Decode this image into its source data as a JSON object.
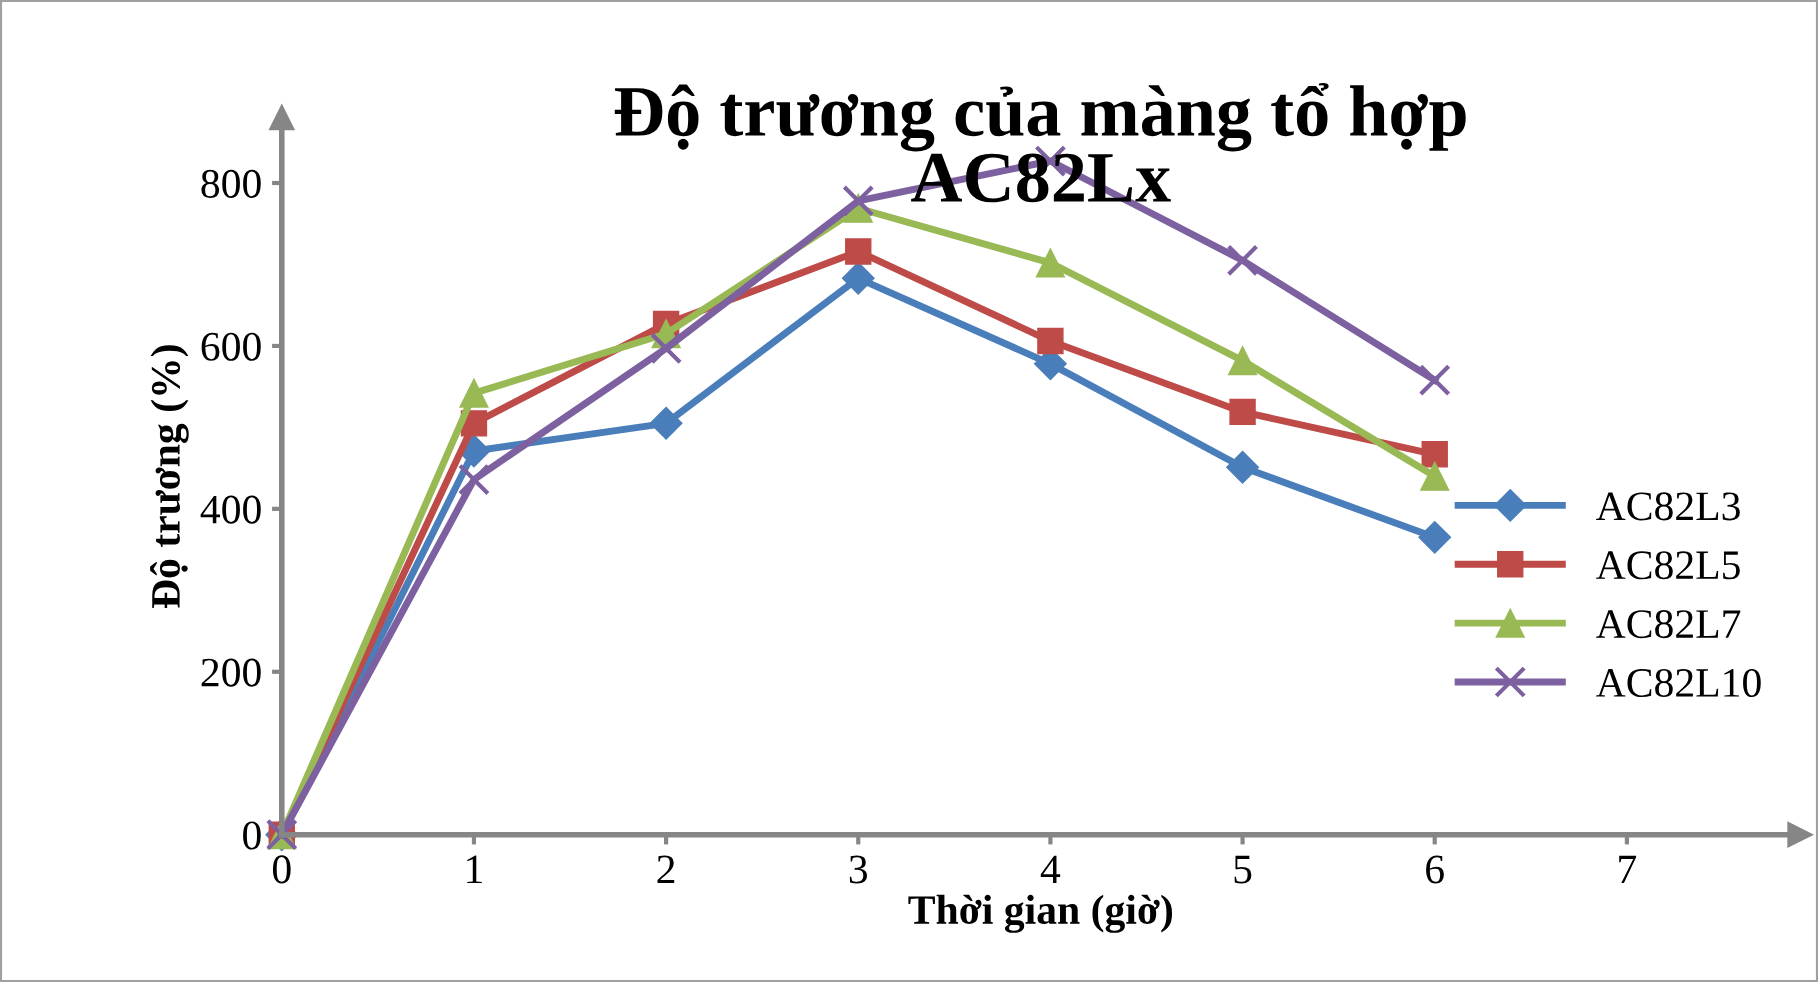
{
  "chart_data": {
    "type": "line",
    "title": "Độ trương của màng tổ hợp\nAC82Lx",
    "xlabel": "Thời gian (giờ)",
    "ylabel": "Độ trương (%)",
    "x": [
      0,
      1,
      2,
      3,
      4,
      5,
      6
    ],
    "xlim": [
      0,
      7.9
    ],
    "xticks": [
      0,
      1,
      2,
      3,
      4,
      5,
      6,
      7
    ],
    "ylim": [
      0,
      880
    ],
    "yticks": [
      0,
      200,
      400,
      600,
      800
    ],
    "grid": false,
    "legend": "right",
    "series": [
      {
        "name": "AC82L3",
        "color": "#4a7ebb",
        "marker": "diamond",
        "values": [
          0,
          471,
          505,
          683,
          578,
          451,
          365
        ]
      },
      {
        "name": "AC82L5",
        "color": "#be4b48",
        "marker": "square",
        "values": [
          0,
          505,
          627,
          716,
          606,
          519,
          467
        ]
      },
      {
        "name": "AC82L7",
        "color": "#98b954",
        "marker": "triangle",
        "values": [
          0,
          542,
          615,
          769,
          702,
          582,
          440
        ]
      },
      {
        "name": "AC82L10",
        "color": "#7d60a0",
        "marker": "cross",
        "values": [
          0,
          436,
          597,
          778,
          827,
          705,
          558
        ]
      }
    ]
  }
}
